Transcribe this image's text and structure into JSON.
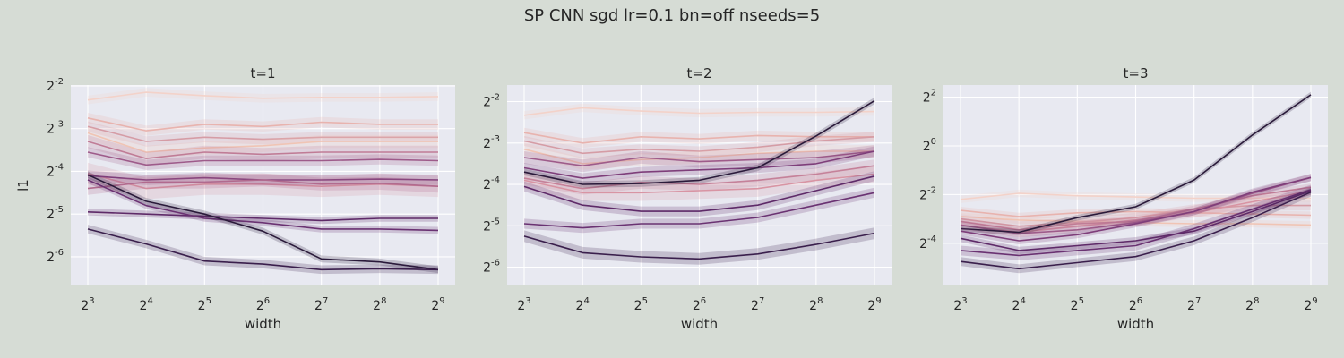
{
  "figure": {
    "suptitle": "SP CNN sgd lr=0.1 bn=off nseeds=5",
    "background": "#d6dcd5",
    "panel_background": "#e8e9f1",
    "grid_color": "#ffffff",
    "band_opacity": 0.22
  },
  "chart_data": [
    {
      "type": "line",
      "title": "t=1",
      "xlabel": "width",
      "ylabel": "l1",
      "x_scale": "log2",
      "y_scale": "log2",
      "x": [
        8,
        16,
        32,
        64,
        128,
        256,
        512
      ],
      "x_tick_labels": [
        "2^3",
        "2^4",
        "2^5",
        "2^6",
        "2^7",
        "2^8",
        "2^9"
      ],
      "y_ticks": [
        -6,
        -5,
        -4,
        -3,
        -2
      ],
      "y_tick_labels": [
        "2^-6",
        "2^-5",
        "2^-4",
        "2^-3",
        "2^-2"
      ],
      "ylim_log2": [
        -6.65,
        -1.98
      ],
      "grid": true,
      "legend": "none",
      "series": [
        {
          "color": "#f3d2c9",
          "log2_values": [
            -2.33,
            -2.15,
            -2.23,
            -2.29,
            -2.27,
            -2.27,
            -2.25
          ],
          "band": 0.1
        },
        {
          "color": "#e8b3ae",
          "log2_values": [
            -2.75,
            -3.05,
            -2.9,
            -2.95,
            -2.85,
            -2.9,
            -2.9
          ],
          "band": 0.12
        },
        {
          "color": "#d59ca5",
          "log2_values": [
            -2.95,
            -3.3,
            -3.2,
            -3.25,
            -3.2,
            -3.2,
            -3.2
          ],
          "band": 0.12
        },
        {
          "color": "#f0c4b4",
          "log2_values": [
            -3.1,
            -3.55,
            -3.45,
            -3.4,
            -3.3,
            -3.3,
            -3.3
          ],
          "band": 0.15
        },
        {
          "color": "#c07c96",
          "log2_values": [
            -3.3,
            -3.7,
            -3.55,
            -3.6,
            -3.55,
            -3.55,
            -3.55
          ],
          "band": 0.15
        },
        {
          "color": "#9e5b8a",
          "log2_values": [
            -3.55,
            -3.85,
            -3.75,
            -3.75,
            -3.75,
            -3.72,
            -3.75
          ],
          "band": 0.12
        },
        {
          "color": "#d894a3",
          "log2_values": [
            -4.05,
            -4.4,
            -4.3,
            -4.3,
            -4.35,
            -4.3,
            -4.35
          ],
          "band": 0.25
        },
        {
          "color": "#7e3e7a",
          "log2_values": [
            -4.1,
            -4.2,
            -4.15,
            -4.2,
            -4.2,
            -4.18,
            -4.2
          ],
          "band": 0.12
        },
        {
          "color": "#b16a8e",
          "log2_values": [
            -4.4,
            -4.25,
            -4.25,
            -4.2,
            -4.3,
            -4.28,
            -4.35
          ],
          "band": 0.15
        },
        {
          "color": "#5e2a68",
          "log2_values": [
            -4.95,
            -5.0,
            -5.05,
            -5.1,
            -5.15,
            -5.1,
            -5.1
          ],
          "band": 0.08
        },
        {
          "color": "#6a3272",
          "log2_values": [
            -4.2,
            -4.8,
            -5.1,
            -5.2,
            -5.35,
            -5.35,
            -5.38
          ],
          "band": 0.08
        },
        {
          "color": "#2a1a3a",
          "log2_values": [
            -4.08,
            -4.7,
            -5.0,
            -5.4,
            -6.05,
            -6.12,
            -6.3
          ],
          "band": 0.08
        },
        {
          "color": "#3a1f4c",
          "log2_values": [
            -5.35,
            -5.7,
            -6.1,
            -6.17,
            -6.3,
            -6.28,
            -6.3
          ],
          "band": 0.1
        }
      ]
    },
    {
      "type": "line",
      "title": "t=2",
      "xlabel": "width",
      "ylabel": "",
      "x_scale": "log2",
      "y_scale": "log2",
      "x": [
        8,
        16,
        32,
        64,
        128,
        256,
        512
      ],
      "x_tick_labels": [
        "2^3",
        "2^4",
        "2^5",
        "2^6",
        "2^7",
        "2^8",
        "2^9"
      ],
      "y_ticks": [
        -6,
        -5,
        -4,
        -3,
        -2
      ],
      "y_tick_labels": [
        "2^-6",
        "2^-5",
        "2^-4",
        "2^-3",
        "2^-2"
      ],
      "ylim_log2": [
        -6.42,
        -1.6
      ],
      "grid": true,
      "legend": "none",
      "series": [
        {
          "color": "#f3d2c9",
          "log2_values": [
            -2.33,
            -2.15,
            -2.23,
            -2.28,
            -2.26,
            -2.26,
            -2.24
          ],
          "band": 0.1
        },
        {
          "color": "#e8b3ae",
          "log2_values": [
            -2.75,
            -3.0,
            -2.85,
            -2.9,
            -2.82,
            -2.85,
            -2.85
          ],
          "band": 0.12
        },
        {
          "color": "#d59ca5",
          "log2_values": [
            -2.95,
            -3.25,
            -3.15,
            -3.2,
            -3.1,
            -2.95,
            -2.85
          ],
          "band": 0.12
        },
        {
          "color": "#f0c4b4",
          "log2_values": [
            -3.15,
            -3.5,
            -3.4,
            -3.35,
            -3.25,
            -3.2,
            -3.2
          ],
          "band": 0.15
        },
        {
          "color": "#9e5b8a",
          "log2_values": [
            -3.35,
            -3.55,
            -3.35,
            -3.45,
            -3.4,
            -3.35,
            -3.2
          ],
          "band": 0.15
        },
        {
          "color": "#7e3e7a",
          "log2_values": [
            -3.6,
            -3.85,
            -3.7,
            -3.65,
            -3.6,
            -3.5,
            -3.2
          ],
          "band": 0.12
        },
        {
          "color": "#c07c96",
          "log2_values": [
            -3.85,
            -4.1,
            -3.95,
            -4.0,
            -3.9,
            -3.75,
            -3.55
          ],
          "band": 0.15
        },
        {
          "color": "#d894a3",
          "log2_values": [
            -3.9,
            -4.2,
            -4.2,
            -4.15,
            -4.1,
            -3.9,
            -3.75
          ],
          "band": 0.2
        },
        {
          "color": "#2a1a3a",
          "log2_values": [
            -3.7,
            -4.0,
            -3.98,
            -3.9,
            -3.6,
            -2.83,
            -1.98
          ],
          "band": 0.08
        },
        {
          "color": "#5e2a68",
          "log2_values": [
            -4.05,
            -4.5,
            -4.65,
            -4.65,
            -4.5,
            -4.15,
            -3.8
          ],
          "band": 0.12
        },
        {
          "color": "#6a3272",
          "log2_values": [
            -4.95,
            -5.05,
            -4.95,
            -4.95,
            -4.8,
            -4.5,
            -4.2
          ],
          "band": 0.12
        },
        {
          "color": "#3a1f4c",
          "log2_values": [
            -5.25,
            -5.65,
            -5.75,
            -5.8,
            -5.68,
            -5.45,
            -5.18
          ],
          "band": 0.14
        }
      ]
    },
    {
      "type": "line",
      "title": "t=3",
      "xlabel": "width",
      "ylabel": "",
      "x_scale": "log2",
      "y_scale": "log2",
      "x": [
        8,
        16,
        32,
        64,
        128,
        256,
        512
      ],
      "x_tick_labels": [
        "2^3",
        "2^4",
        "2^5",
        "2^6",
        "2^7",
        "2^8",
        "2^9"
      ],
      "y_ticks": [
        -4,
        -2,
        0,
        2
      ],
      "y_tick_labels": [
        "2^-4",
        "2^-2",
        "2^0",
        "2^2"
      ],
      "ylim_log2": [
        -5.7,
        2.5
      ],
      "grid": true,
      "legend": "none",
      "series": [
        {
          "color": "#f3d2c9",
          "log2_values": [
            -2.2,
            -1.95,
            -2.05,
            -2.1,
            -2.15,
            -2.15,
            -2.15
          ],
          "band": 0.15
        },
        {
          "color": "#e8b3ae",
          "log2_values": [
            -2.65,
            -2.9,
            -2.75,
            -2.7,
            -2.75,
            -2.8,
            -2.85
          ],
          "band": 0.15
        },
        {
          "color": "#f0c4b4",
          "log2_values": [
            -2.9,
            -3.05,
            -3.1,
            -3.15,
            -3.2,
            -3.2,
            -3.25
          ],
          "band": 0.15
        },
        {
          "color": "#d59ca5",
          "log2_values": [
            -3.0,
            -3.3,
            -3.15,
            -2.95,
            -2.6,
            -2.45,
            -2.45
          ],
          "band": 0.2
        },
        {
          "color": "#d894a3",
          "log2_values": [
            -3.25,
            -3.55,
            -3.3,
            -3.05,
            -2.75,
            -2.3,
            -1.85
          ],
          "band": 0.2
        },
        {
          "color": "#c07c96",
          "log2_values": [
            -3.1,
            -3.45,
            -3.2,
            -3.1,
            -2.6,
            -2.05,
            -1.7
          ],
          "band": 0.15
        },
        {
          "color": "#9e5b8a",
          "log2_values": [
            -3.25,
            -3.6,
            -3.45,
            -3.15,
            -2.7,
            -1.95,
            -1.3
          ],
          "band": 0.15
        },
        {
          "color": "#2a1a3a",
          "log2_values": [
            -3.4,
            -3.55,
            -2.95,
            -2.5,
            -1.4,
            0.45,
            2.1
          ],
          "band": 0.12
        },
        {
          "color": "#7e3e7a",
          "log2_values": [
            -3.5,
            -3.9,
            -3.65,
            -3.2,
            -2.7,
            -1.9,
            -1.3
          ],
          "band": 0.15
        },
        {
          "color": "#6a3272",
          "log2_values": [
            -4.3,
            -4.5,
            -4.3,
            -4.1,
            -3.4,
            -2.6,
            -1.8
          ],
          "band": 0.2
        },
        {
          "color": "#5e2a68",
          "log2_values": [
            -3.8,
            -4.3,
            -4.1,
            -3.9,
            -3.5,
            -2.7,
            -1.85
          ],
          "band": 0.15
        },
        {
          "color": "#3a1f4c",
          "log2_values": [
            -4.75,
            -5.05,
            -4.8,
            -4.55,
            -3.9,
            -2.95,
            -1.9
          ],
          "band": 0.18
        }
      ]
    }
  ]
}
